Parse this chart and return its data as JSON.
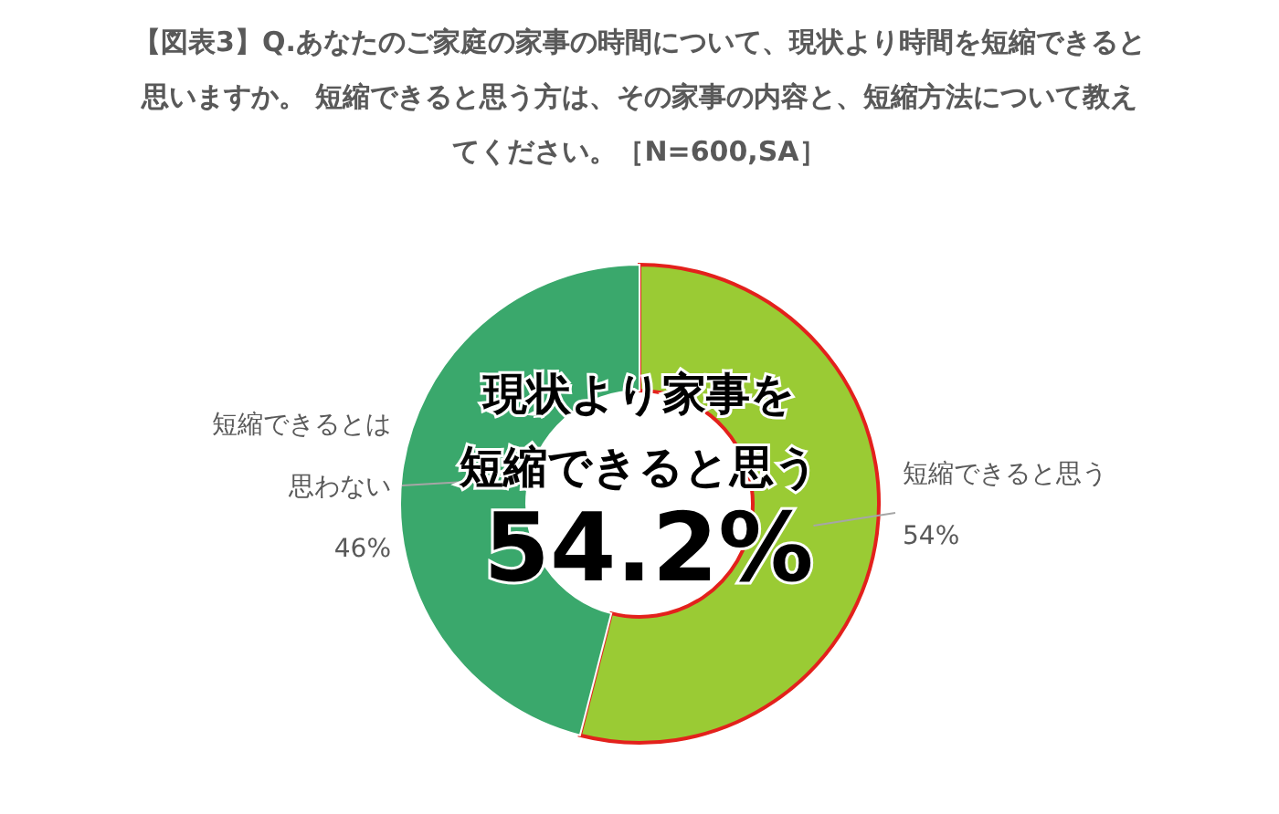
{
  "chart_data": {
    "type": "donut",
    "title": "【図表3】Q.あなたのご家庭の家事の時間について、現状より時間を短縮できると思いますか。 短縮できると思う方は、その家事の内容と、短縮方法について教えてください。［N=600,SA］",
    "categories": [
      "短縮できると思う",
      "短縮できるとは思わない"
    ],
    "values": [
      54,
      46
    ],
    "colors": [
      "#9acb34",
      "#3aa86c"
    ],
    "value_labels": [
      "54%",
      "46%"
    ],
    "annotations": [
      "現状より家事を短縮できると思う",
      "54.2%"
    ]
  }
}
